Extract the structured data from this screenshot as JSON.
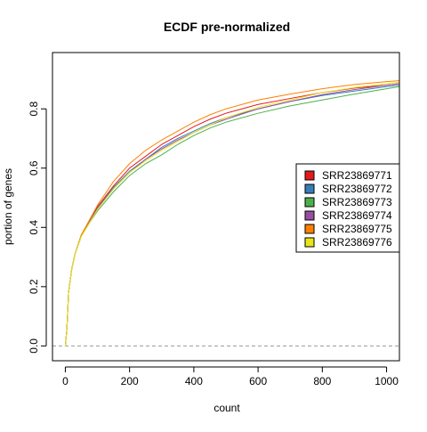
{
  "chart_data": {
    "type": "line",
    "title": "ECDF pre-normalized",
    "xlabel": "count",
    "ylabel": "portion of genes",
    "xlim": [
      -40,
      1040
    ],
    "ylim": [
      -0.05,
      0.99
    ],
    "x_ticks": [
      0,
      200,
      400,
      600,
      800,
      1000
    ],
    "y_ticks": [
      0.0,
      0.2,
      0.4,
      0.6,
      0.8
    ],
    "x_tick_labels": [
      "0",
      "200",
      "400",
      "600",
      "800",
      "1000"
    ],
    "y_tick_labels": [
      "0.0",
      "0.2",
      "0.4",
      "0.6",
      "0.8"
    ],
    "reference_line": {
      "y": 0,
      "style": "dashed",
      "color": "#999999"
    },
    "legend_position": "right",
    "series": [
      {
        "name": "SRR23869771",
        "color": "#E41A1C",
        "points": [
          [
            0,
            0
          ],
          [
            5,
            0.06
          ],
          [
            10,
            0.18
          ],
          [
            20,
            0.26
          ],
          [
            30,
            0.31
          ],
          [
            50,
            0.375
          ],
          [
            75,
            0.42
          ],
          [
            100,
            0.47
          ],
          [
            150,
            0.54
          ],
          [
            200,
            0.6
          ],
          [
            250,
            0.64
          ],
          [
            300,
            0.68
          ],
          [
            350,
            0.71
          ],
          [
            400,
            0.74
          ],
          [
            450,
            0.765
          ],
          [
            500,
            0.785
          ],
          [
            600,
            0.815
          ],
          [
            700,
            0.835
          ],
          [
            800,
            0.855
          ],
          [
            900,
            0.87
          ],
          [
            1000,
            0.88
          ],
          [
            1040,
            0.885
          ]
        ]
      },
      {
        "name": "SRR23869772",
        "color": "#377EB8",
        "points": [
          [
            0,
            0
          ],
          [
            5,
            0.06
          ],
          [
            10,
            0.18
          ],
          [
            20,
            0.26
          ],
          [
            30,
            0.31
          ],
          [
            50,
            0.375
          ],
          [
            75,
            0.42
          ],
          [
            100,
            0.465
          ],
          [
            150,
            0.535
          ],
          [
            200,
            0.59
          ],
          [
            250,
            0.63
          ],
          [
            300,
            0.67
          ],
          [
            350,
            0.7
          ],
          [
            400,
            0.725
          ],
          [
            450,
            0.75
          ],
          [
            500,
            0.77
          ],
          [
            600,
            0.8
          ],
          [
            700,
            0.825
          ],
          [
            800,
            0.845
          ],
          [
            900,
            0.86
          ],
          [
            1000,
            0.875
          ],
          [
            1040,
            0.88
          ]
        ]
      },
      {
        "name": "SRR23869773",
        "color": "#4DAF4A",
        "points": [
          [
            0,
            0
          ],
          [
            5,
            0.06
          ],
          [
            10,
            0.18
          ],
          [
            20,
            0.26
          ],
          [
            30,
            0.31
          ],
          [
            50,
            0.37
          ],
          [
            75,
            0.415
          ],
          [
            100,
            0.455
          ],
          [
            150,
            0.52
          ],
          [
            200,
            0.575
          ],
          [
            250,
            0.615
          ],
          [
            300,
            0.645
          ],
          [
            350,
            0.68
          ],
          [
            400,
            0.71
          ],
          [
            450,
            0.735
          ],
          [
            500,
            0.755
          ],
          [
            600,
            0.785
          ],
          [
            700,
            0.81
          ],
          [
            800,
            0.83
          ],
          [
            900,
            0.85
          ],
          [
            1000,
            0.868
          ],
          [
            1040,
            0.875
          ]
        ]
      },
      {
        "name": "SRR23869774",
        "color": "#984EA3",
        "points": [
          [
            0,
            0
          ],
          [
            5,
            0.06
          ],
          [
            10,
            0.18
          ],
          [
            20,
            0.26
          ],
          [
            30,
            0.31
          ],
          [
            50,
            0.375
          ],
          [
            75,
            0.42
          ],
          [
            100,
            0.465
          ],
          [
            150,
            0.53
          ],
          [
            200,
            0.585
          ],
          [
            250,
            0.63
          ],
          [
            300,
            0.665
          ],
          [
            350,
            0.695
          ],
          [
            400,
            0.72
          ],
          [
            450,
            0.745
          ],
          [
            500,
            0.765
          ],
          [
            600,
            0.8
          ],
          [
            700,
            0.825
          ],
          [
            800,
            0.848
          ],
          [
            900,
            0.865
          ],
          [
            1000,
            0.88
          ],
          [
            1040,
            0.885
          ]
        ]
      },
      {
        "name": "SRR23869775",
        "color": "#FF7F00",
        "points": [
          [
            0,
            0
          ],
          [
            5,
            0.06
          ],
          [
            10,
            0.18
          ],
          [
            20,
            0.26
          ],
          [
            30,
            0.31
          ],
          [
            50,
            0.375
          ],
          [
            75,
            0.425
          ],
          [
            100,
            0.475
          ],
          [
            150,
            0.555
          ],
          [
            200,
            0.615
          ],
          [
            250,
            0.66
          ],
          [
            300,
            0.695
          ],
          [
            350,
            0.725
          ],
          [
            400,
            0.755
          ],
          [
            450,
            0.78
          ],
          [
            500,
            0.8
          ],
          [
            600,
            0.83
          ],
          [
            700,
            0.85
          ],
          [
            800,
            0.868
          ],
          [
            900,
            0.882
          ],
          [
            1000,
            0.892
          ],
          [
            1040,
            0.895
          ]
        ]
      },
      {
        "name": "SRR23869776",
        "color": "#E6E61A",
        "points": [
          [
            0,
            0
          ],
          [
            5,
            0.06
          ],
          [
            10,
            0.18
          ],
          [
            20,
            0.26
          ],
          [
            30,
            0.31
          ],
          [
            50,
            0.37
          ],
          [
            75,
            0.415
          ],
          [
            100,
            0.46
          ],
          [
            150,
            0.53
          ],
          [
            200,
            0.585
          ],
          [
            250,
            0.625
          ],
          [
            300,
            0.66
          ],
          [
            350,
            0.69
          ],
          [
            400,
            0.72
          ],
          [
            450,
            0.745
          ],
          [
            500,
            0.77
          ],
          [
            600,
            0.805
          ],
          [
            700,
            0.83
          ],
          [
            800,
            0.855
          ],
          [
            900,
            0.872
          ],
          [
            1000,
            0.885
          ],
          [
            1040,
            0.89
          ]
        ]
      }
    ]
  }
}
